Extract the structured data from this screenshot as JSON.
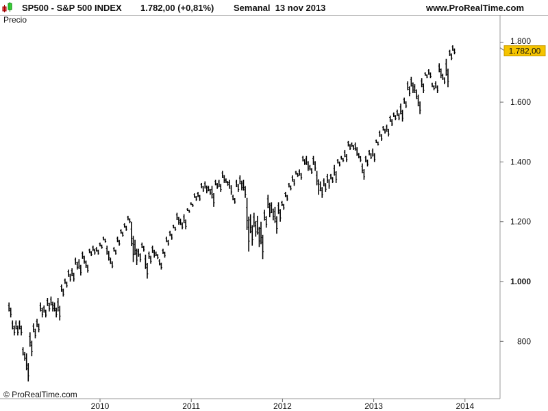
{
  "header": {
    "symbol": "SP500 - S&P 500 INDEX",
    "price": "1.782,00 (+0,81%)",
    "period": "Semanal  13 nov 2013",
    "site": "www.ProRealTime.com",
    "icon": "candlestick-icon"
  },
  "panel_label": "Precio",
  "copyright": "© ProRealTime.com",
  "price_tag": {
    "label": "1.782,00",
    "color": "#f5c400"
  },
  "chart_data": {
    "type": "ohlc-bar",
    "title": "SP500 - S&P 500 INDEX",
    "frequency": "weekly",
    "ylim": [
      640,
      1860
    ],
    "xlim": [
      "2008-12-25",
      "2014-06-15"
    ],
    "y_ticks": [
      "800",
      "1.000",
      "1.200",
      "1.400",
      "1.600",
      "1.800"
    ],
    "x_ticks": [
      "2010",
      "2011",
      "2012",
      "2013",
      "2014"
    ],
    "grid": false,
    "bar_color": "#000000",
    "bars": [
      [
        "2009-01-02",
        930,
        880
      ],
      [
        "2009-01-16",
        870,
        820
      ],
      [
        "2009-01-30",
        870,
        820
      ],
      [
        "2009-02-13",
        870,
        820
      ],
      [
        "2009-02-27",
        780,
        735
      ],
      [
        "2009-03-13",
        760,
        666
      ],
      [
        "2009-03-27",
        830,
        750
      ],
      [
        "2009-04-10",
        860,
        810
      ],
      [
        "2009-04-24",
        875,
        830
      ],
      [
        "2009-05-08",
        930,
        880
      ],
      [
        "2009-05-22",
        920,
        880
      ],
      [
        "2009-06-05",
        945,
        900
      ],
      [
        "2009-06-19",
        950,
        900
      ],
      [
        "2009-07-03",
        930,
        880
      ],
      [
        "2009-07-17",
        945,
        870
      ],
      [
        "2009-07-31",
        990,
        950
      ],
      [
        "2009-08-14",
        1010,
        980
      ],
      [
        "2009-08-28",
        1040,
        1000
      ],
      [
        "2009-09-11",
        1045,
        1000
      ],
      [
        "2009-09-25",
        1080,
        1040
      ],
      [
        "2009-10-09",
        1075,
        1020
      ],
      [
        "2009-10-23",
        1100,
        1060
      ],
      [
        "2009-11-06",
        1070,
        1030
      ],
      [
        "2009-11-20",
        1110,
        1085
      ],
      [
        "2009-12-04",
        1120,
        1090
      ],
      [
        "2009-12-18",
        1115,
        1090
      ],
      [
        "2010-01-01",
        1130,
        1110
      ],
      [
        "2010-01-15",
        1150,
        1130
      ],
      [
        "2010-01-29",
        1120,
        1070
      ],
      [
        "2010-02-12",
        1080,
        1045
      ],
      [
        "2010-02-26",
        1115,
        1090
      ],
      [
        "2010-03-12",
        1150,
        1120
      ],
      [
        "2010-03-26",
        1175,
        1150
      ],
      [
        "2010-04-09",
        1195,
        1170
      ],
      [
        "2010-04-23",
        1220,
        1195
      ],
      [
        "2010-05-07",
        1200,
        1065
      ],
      [
        "2010-05-21",
        1140,
        1055
      ],
      [
        "2010-06-04",
        1110,
        1065
      ],
      [
        "2010-06-18",
        1130,
        1100
      ],
      [
        "2010-07-02",
        1090,
        1010
      ],
      [
        "2010-07-16",
        1100,
        1060
      ],
      [
        "2010-07-30",
        1120,
        1080
      ],
      [
        "2010-08-13",
        1100,
        1075
      ],
      [
        "2010-08-27",
        1075,
        1040
      ],
      [
        "2010-09-10",
        1110,
        1080
      ],
      [
        "2010-09-24",
        1150,
        1120
      ],
      [
        "2010-10-08",
        1170,
        1140
      ],
      [
        "2010-10-22",
        1190,
        1170
      ],
      [
        "2010-11-05",
        1230,
        1190
      ],
      [
        "2010-11-19",
        1210,
        1175
      ],
      [
        "2010-12-03",
        1225,
        1175
      ],
      [
        "2010-12-17",
        1245,
        1230
      ],
      [
        "2010-12-31",
        1265,
        1250
      ],
      [
        "2011-01-14",
        1295,
        1270
      ],
      [
        "2011-01-28",
        1300,
        1270
      ],
      [
        "2011-02-11",
        1330,
        1300
      ],
      [
        "2011-02-25",
        1335,
        1295
      ],
      [
        "2011-03-11",
        1320,
        1290
      ],
      [
        "2011-03-25",
        1320,
        1250
      ],
      [
        "2011-04-08",
        1340,
        1310
      ],
      [
        "2011-04-22",
        1340,
        1300
      ],
      [
        "2011-05-06",
        1370,
        1330
      ],
      [
        "2011-05-20",
        1345,
        1320
      ],
      [
        "2011-06-03",
        1340,
        1290
      ],
      [
        "2011-06-17",
        1290,
        1260
      ],
      [
        "2011-07-01",
        1340,
        1300
      ],
      [
        "2011-07-15",
        1355,
        1305
      ],
      [
        "2011-07-29",
        1340,
        1280
      ],
      [
        "2011-08-12",
        1280,
        1100
      ],
      [
        "2011-08-26",
        1225,
        1120
      ],
      [
        "2011-09-09",
        1230,
        1150
      ],
      [
        "2011-09-23",
        1220,
        1115
      ],
      [
        "2011-10-07",
        1200,
        1075
      ],
      [
        "2011-10-21",
        1240,
        1180
      ],
      [
        "2011-11-04",
        1290,
        1215
      ],
      [
        "2011-11-18",
        1265,
        1205
      ],
      [
        "2011-12-02",
        1250,
        1160
      ],
      [
        "2011-12-16",
        1265,
        1200
      ],
      [
        "2011-12-30",
        1270,
        1240
      ],
      [
        "2012-01-13",
        1300,
        1270
      ],
      [
        "2012-01-27",
        1330,
        1305
      ],
      [
        "2012-02-10",
        1355,
        1320
      ],
      [
        "2012-02-24",
        1370,
        1350
      ],
      [
        "2012-03-09",
        1375,
        1340
      ],
      [
        "2012-03-23",
        1420,
        1390
      ],
      [
        "2012-04-06",
        1420,
        1370
      ],
      [
        "2012-04-20",
        1390,
        1360
      ],
      [
        "2012-05-04",
        1420,
        1370
      ],
      [
        "2012-05-18",
        1370,
        1290
      ],
      [
        "2012-06-01",
        1335,
        1280
      ],
      [
        "2012-06-15",
        1345,
        1300
      ],
      [
        "2012-06-29",
        1360,
        1310
      ],
      [
        "2012-07-13",
        1360,
        1330
      ],
      [
        "2012-07-27",
        1390,
        1330
      ],
      [
        "2012-08-10",
        1410,
        1385
      ],
      [
        "2012-08-24",
        1420,
        1400
      ],
      [
        "2012-09-07",
        1440,
        1400
      ],
      [
        "2012-09-21",
        1470,
        1440
      ],
      [
        "2012-10-05",
        1465,
        1440
      ],
      [
        "2012-10-19",
        1465,
        1420
      ],
      [
        "2012-11-02",
        1430,
        1400
      ],
      [
        "2012-11-16",
        1395,
        1340
      ],
      [
        "2012-11-30",
        1420,
        1385
      ],
      [
        "2012-12-14",
        1440,
        1410
      ],
      [
        "2012-12-28",
        1445,
        1400
      ],
      [
        "2013-01-11",
        1475,
        1455
      ],
      [
        "2013-01-25",
        1505,
        1470
      ],
      [
        "2013-02-08",
        1520,
        1495
      ],
      [
        "2013-02-22",
        1525,
        1485
      ],
      [
        "2013-03-08",
        1555,
        1520
      ],
      [
        "2013-03-22",
        1565,
        1540
      ],
      [
        "2013-04-05",
        1575,
        1540
      ],
      [
        "2013-04-19",
        1595,
        1535
      ],
      [
        "2013-05-03",
        1615,
        1580
      ],
      [
        "2013-05-17",
        1670,
        1620
      ],
      [
        "2013-05-31",
        1685,
        1630
      ],
      [
        "2013-06-14",
        1660,
        1610
      ],
      [
        "2013-06-28",
        1625,
        1560
      ],
      [
        "2013-07-12",
        1680,
        1630
      ],
      [
        "2013-07-26",
        1700,
        1680
      ],
      [
        "2013-08-09",
        1710,
        1680
      ],
      [
        "2013-08-23",
        1665,
        1640
      ],
      [
        "2013-09-06",
        1670,
        1630
      ],
      [
        "2013-09-20",
        1730,
        1680
      ],
      [
        "2013-10-04",
        1695,
        1660
      ],
      [
        "2013-10-18",
        1745,
        1650
      ],
      [
        "2013-11-01",
        1775,
        1740
      ],
      [
        "2013-11-13",
        1790,
        1760
      ]
    ]
  }
}
